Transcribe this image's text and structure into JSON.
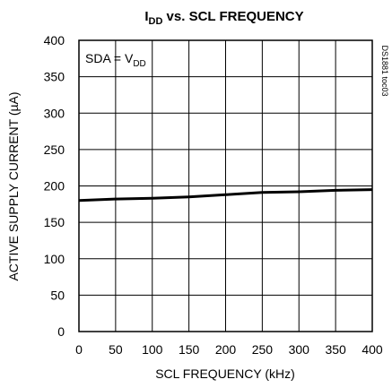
{
  "chart_data": {
    "type": "line",
    "title_main": "I",
    "title_sub": "DD",
    "title_rest": " vs. SCL FREQUENCY",
    "xlabel": "SCL FREQUENCY (kHz)",
    "ylabel": "ACTIVE SUPPLY CURRENT (µA)",
    "xlim": [
      0,
      400
    ],
    "ylim": [
      0,
      400
    ],
    "x_ticks": [
      0,
      50,
      100,
      150,
      200,
      250,
      300,
      350,
      400
    ],
    "y_ticks": [
      0,
      50,
      100,
      150,
      200,
      250,
      300,
      350,
      400
    ],
    "grid": true,
    "annotation_main": "SDA = V",
    "annotation_sub": "DD",
    "side_code": "DS1881 toc03",
    "series": [
      {
        "x": [
          0,
          50,
          100,
          150,
          200,
          250,
          300,
          350,
          400
        ],
        "y": [
          180,
          182,
          183,
          185,
          188,
          191,
          192,
          194,
          195
        ]
      }
    ]
  }
}
